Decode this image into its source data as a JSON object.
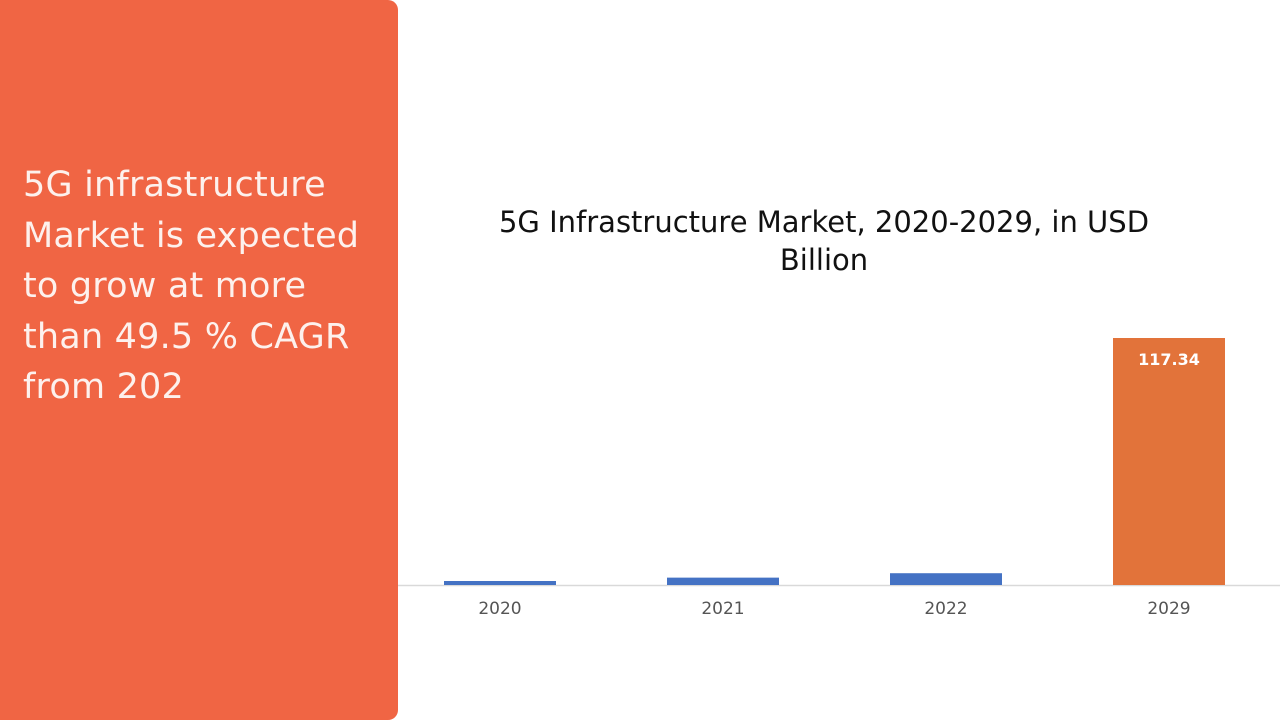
{
  "side_panel": {
    "text": "5G infrastructure Market is expected to grow at more than 49.5 % CAGR from 202"
  },
  "colors": {
    "panel": "#f06544",
    "bar_primary": "#4472c4",
    "bar_highlight": "#e2733a",
    "axis": "#d9d9d9"
  },
  "chart_data": {
    "type": "bar",
    "title": "5G Infrastructure Market, 2020-2029, in USD Billion",
    "xlabel": "",
    "ylabel": "",
    "categories": [
      "2020",
      "2021",
      "2022",
      "2029"
    ],
    "values": [
      1.9,
      3.5,
      5.6,
      117.34
    ],
    "data_labels": [
      "",
      "",
      "",
      "117.34"
    ],
    "ylim": [
      0,
      117.34
    ],
    "grid": false,
    "legend": "none"
  }
}
